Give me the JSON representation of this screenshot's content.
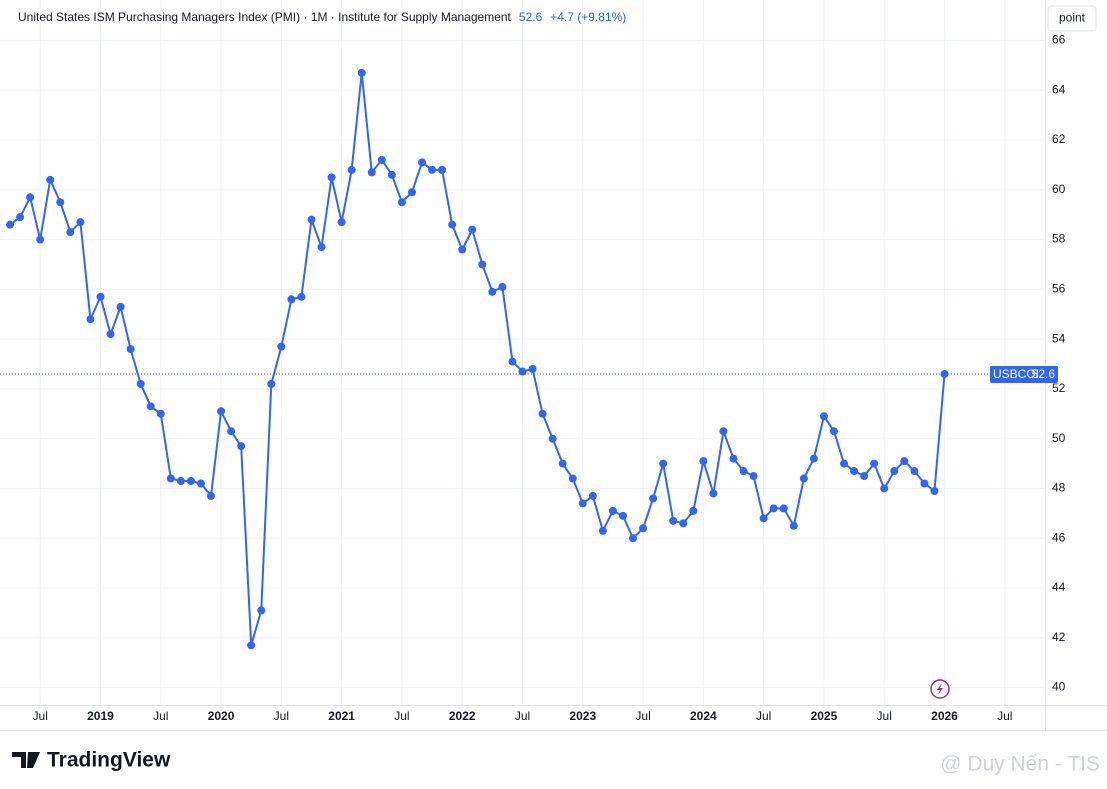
{
  "chart_data": {
    "type": "line",
    "title": "United States ISM Purchasing Managers Index (PMI) · 1M · Institute for Supply Management",
    "change": "+4.7 (+9.81%)",
    "symbol": "USBCOI",
    "scale_button": "point",
    "brand": "TradingView",
    "watermark": "@ Duy Nến - TIS",
    "x": [
      "2018-04",
      "2018-05",
      "2018-06",
      "2018-07",
      "2018-08",
      "2018-09",
      "2018-10",
      "2018-11",
      "2018-12",
      "2019-01",
      "2019-02",
      "2019-03",
      "2019-04",
      "2019-05",
      "2019-06",
      "2019-07",
      "2019-08",
      "2019-09",
      "2019-10",
      "2019-11",
      "2019-12",
      "2020-01",
      "2020-02",
      "2020-03",
      "2020-04",
      "2020-05",
      "2020-06",
      "2020-07",
      "2020-08",
      "2020-09",
      "2020-10",
      "2020-11",
      "2020-12",
      "2021-01",
      "2021-02",
      "2021-03",
      "2021-04",
      "2021-05",
      "2021-06",
      "2021-07",
      "2021-08",
      "2021-09",
      "2021-10",
      "2021-11",
      "2021-12",
      "2022-01",
      "2022-02",
      "2022-03",
      "2022-04",
      "2022-05",
      "2022-06",
      "2022-07",
      "2022-08",
      "2022-09",
      "2022-10",
      "2022-11",
      "2022-12",
      "2023-01",
      "2023-02",
      "2023-03",
      "2023-04",
      "2023-05",
      "2023-06",
      "2023-07",
      "2023-08",
      "2023-09",
      "2023-10",
      "2023-11",
      "2023-12",
      "2024-01",
      "2024-02",
      "2024-03",
      "2024-04",
      "2024-05",
      "2024-06",
      "2024-07",
      "2024-08",
      "2024-09",
      "2024-10",
      "2024-11",
      "2024-12",
      "2025-01",
      "2025-02",
      "2025-03",
      "2025-04",
      "2025-05",
      "2025-06",
      "2025-07",
      "2025-08",
      "2025-09",
      "2025-10",
      "2025-11",
      "2025-12",
      "2026-01"
    ],
    "series": [
      {
        "name": "USBCOI",
        "color": "#3366ee",
        "values": [
          58.6,
          58.9,
          59.7,
          58.0,
          60.4,
          59.5,
          58.3,
          58.7,
          54.8,
          55.7,
          54.2,
          55.3,
          53.6,
          52.2,
          51.3,
          51.0,
          48.4,
          48.3,
          48.3,
          48.2,
          47.7,
          51.1,
          50.3,
          49.7,
          41.7,
          43.1,
          52.2,
          53.7,
          55.6,
          55.7,
          58.8,
          57.7,
          60.5,
          58.7,
          60.8,
          64.7,
          60.7,
          61.2,
          60.6,
          59.5,
          59.9,
          61.1,
          60.8,
          60.8,
          58.6,
          57.6,
          58.4,
          57.0,
          55.9,
          56.1,
          53.1,
          52.7,
          52.8,
          51.0,
          50.0,
          49.0,
          48.4,
          47.4,
          47.7,
          46.3,
          47.1,
          46.9,
          46.0,
          46.4,
          47.6,
          49.0,
          46.7,
          46.6,
          47.1,
          49.1,
          47.8,
          50.3,
          49.2,
          48.7,
          48.5,
          46.8,
          47.2,
          47.2,
          46.5,
          48.4,
          49.2,
          50.9,
          50.3,
          49.0,
          48.7,
          48.5,
          49.0,
          48.0,
          48.7,
          49.1,
          48.7,
          48.2,
          47.9,
          52.6
        ]
      }
    ],
    "xlim": [
      "2018-03",
      "2026-11"
    ],
    "xticks": [
      {
        "value": "2018-07",
        "label": "Jul"
      },
      {
        "value": "2019-01",
        "label": "2019"
      },
      {
        "value": "2019-07",
        "label": "Jul"
      },
      {
        "value": "2020-01",
        "label": "2020"
      },
      {
        "value": "2020-07",
        "label": "Jul"
      },
      {
        "value": "2021-01",
        "label": "2021"
      },
      {
        "value": "2021-07",
        "label": "Jul"
      },
      {
        "value": "2022-01",
        "label": "2022"
      },
      {
        "value": "2022-07",
        "label": "Jul"
      },
      {
        "value": "2023-01",
        "label": "2023"
      },
      {
        "value": "2023-07",
        "label": "Jul"
      },
      {
        "value": "2024-01",
        "label": "2024"
      },
      {
        "value": "2024-07",
        "label": "Jul"
      },
      {
        "value": "2025-01",
        "label": "2025"
      },
      {
        "value": "2025-07",
        "label": "Jul"
      },
      {
        "value": "2026-01",
        "label": "2026"
      },
      {
        "value": "2026-07",
        "label": "Jul"
      }
    ],
    "ylim": [
      39.3,
      66.3
    ],
    "yticks": [
      40,
      42,
      44,
      46,
      48,
      50,
      52,
      54,
      56,
      58,
      60,
      62,
      64,
      66
    ],
    "grid": true
  }
}
